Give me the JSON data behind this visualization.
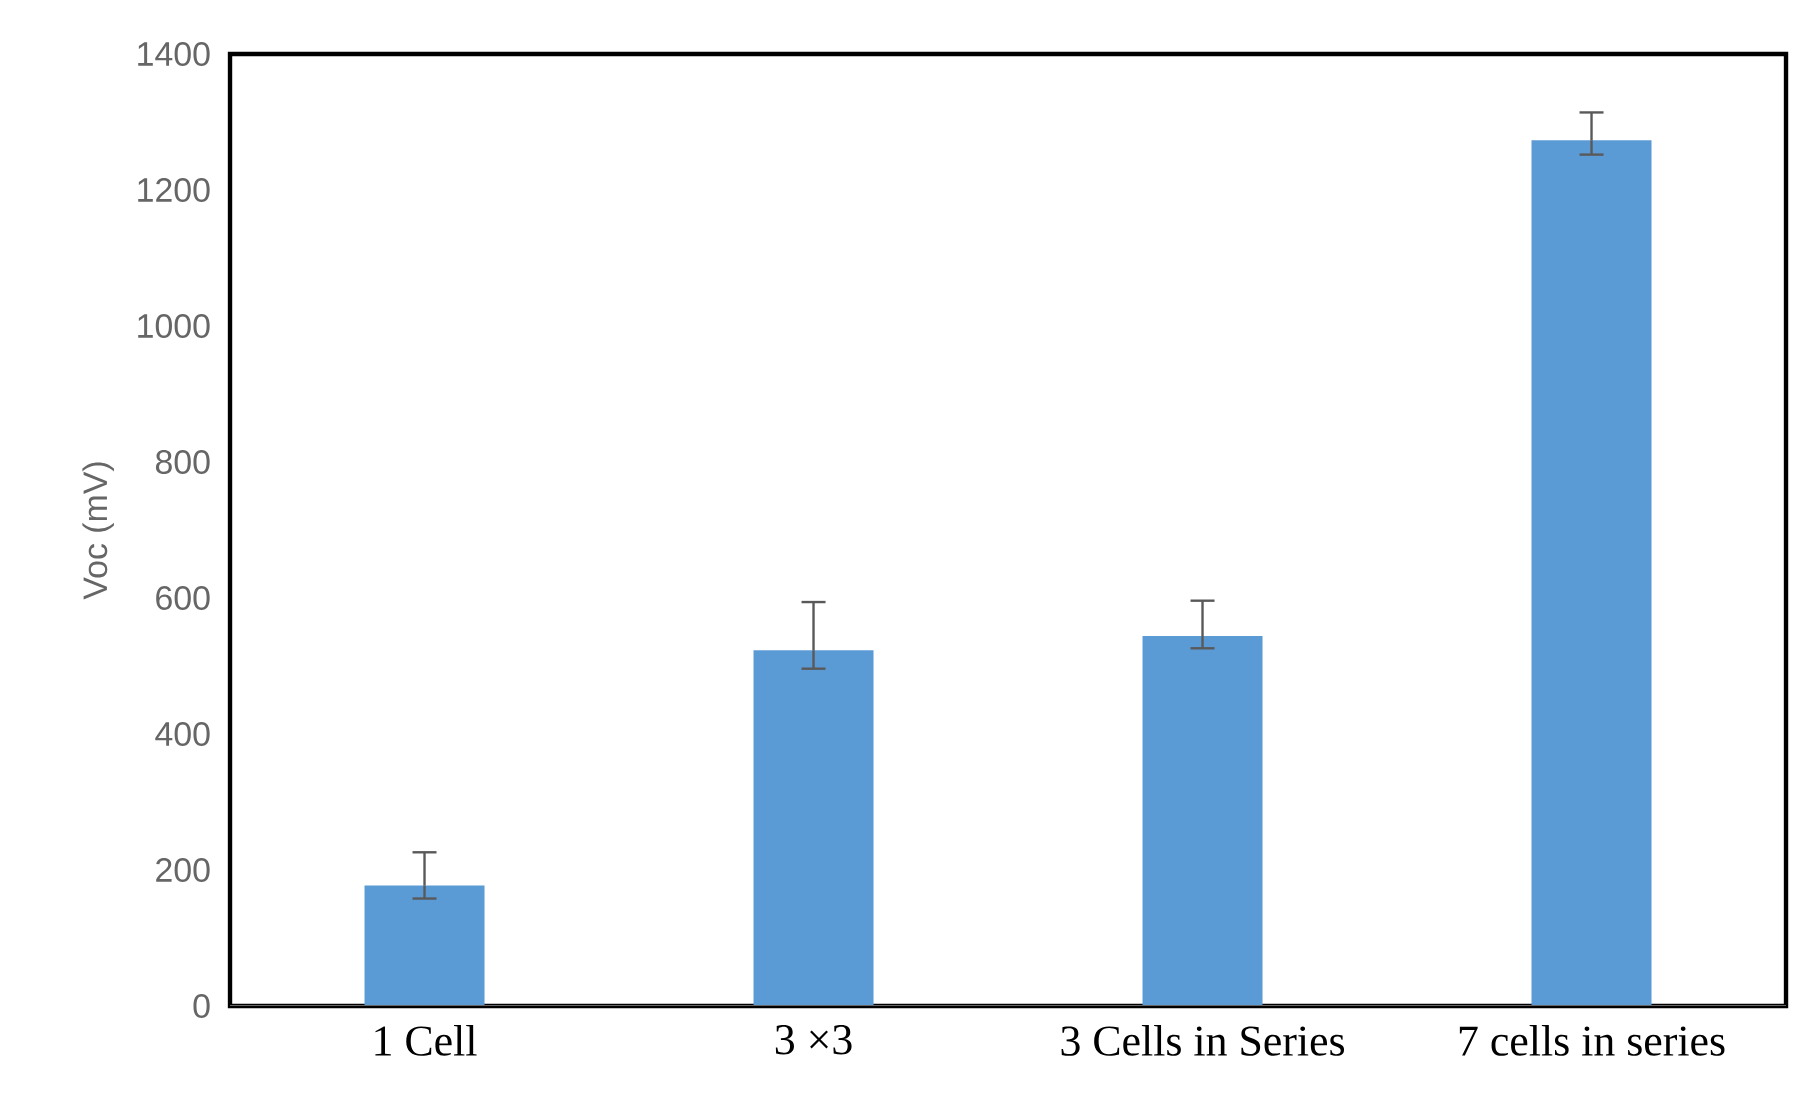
{
  "chart_data": {
    "type": "bar",
    "ylabel": "Voc (mV)",
    "categories": [
      "1 Cell",
      "3 ×3",
      "3 Cells in Series",
      "7 cells in series"
    ],
    "values": [
      177,
      523,
      544,
      1273
    ],
    "errors": [
      [
        158,
        226
      ],
      [
        496,
        594
      ],
      [
        526,
        596
      ],
      [
        1252,
        1314
      ]
    ],
    "color": "#5b9bd5",
    "ylim": [
      0,
      1400
    ],
    "yticks": [
      0,
      200,
      400,
      600,
      800,
      1000,
      1200,
      1400
    ],
    "grid": false
  }
}
